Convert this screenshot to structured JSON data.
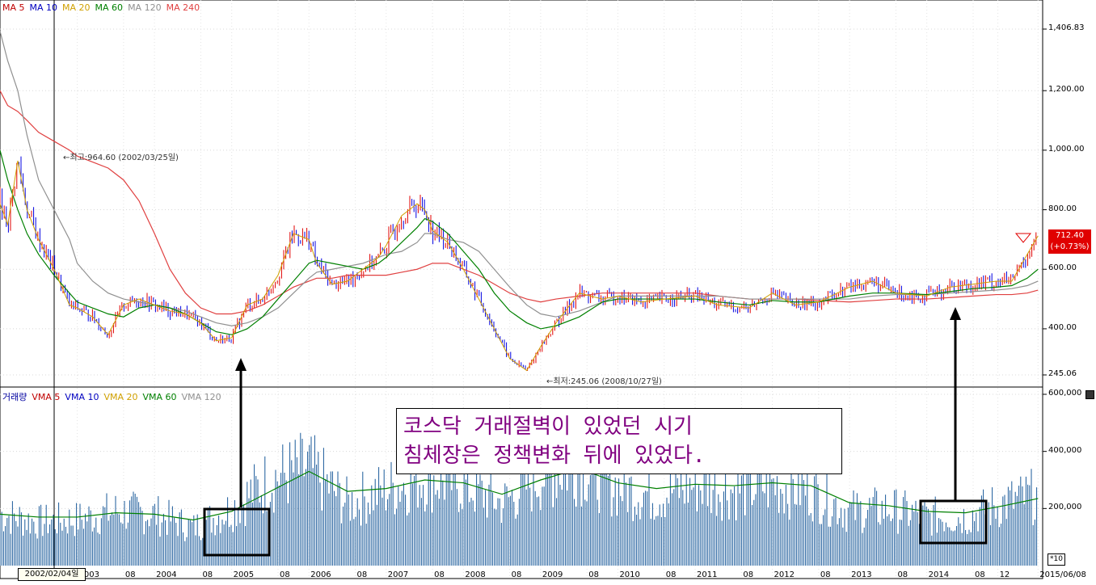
{
  "price_legend": [
    {
      "label": "MA 5",
      "color": "#c00000"
    },
    {
      "label": "MA 10",
      "color": "#0000c0"
    },
    {
      "label": "MA 20",
      "color": "#d0a000"
    },
    {
      "label": "MA 60",
      "color": "#008000"
    },
    {
      "label": "MA 120",
      "color": "#909090"
    },
    {
      "label": "MA 240",
      "color": "#e04040"
    }
  ],
  "volume_legend": [
    {
      "label": "거래량",
      "color": "#0000a0"
    },
    {
      "label": "VMA 5",
      "color": "#c00000"
    },
    {
      "label": "VMA 10",
      "color": "#0000c0"
    },
    {
      "label": "VMA 20",
      "color": "#d0a000"
    },
    {
      "label": "VMA 60",
      "color": "#008000"
    },
    {
      "label": "VMA 120",
      "color": "#909090"
    }
  ],
  "annotations": {
    "high_label": "←최고:964.60 (2002/03/25일)",
    "low_label": "←최저:245.06 (2008/10/27일)",
    "text_box_line1": "코스닥 거래절벽이 있었던 시기",
    "text_box_line2": "침체장은 정책변화 뒤에 있었다.",
    "last_price": "712.40",
    "last_change": "(+0.73%)",
    "cursor_date": "2002/02/04일",
    "multiplier": "*10"
  },
  "colors": {
    "up": "#e00000",
    "down": "#0000e0",
    "volume": "#1a5a9a",
    "box_text": "#800080"
  },
  "chart_data": [
    {
      "type": "line",
      "title": "",
      "ylim": [
        245.06,
        1406.83
      ],
      "y_ticks": [
        "1,406.83",
        "1,200.00",
        "1,000.00",
        "800.00",
        "600.00",
        "400.00",
        "245.06"
      ],
      "y_tick_values": [
        1406.83,
        1200,
        1000,
        800,
        600,
        400,
        245.06
      ],
      "x": [
        2002.0,
        2002.1,
        2002.23,
        2002.35,
        2002.5,
        2002.7,
        2002.9,
        2003.0,
        2003.2,
        2003.4,
        2003.6,
        2003.8,
        2004.0,
        2004.2,
        2004.4,
        2004.6,
        2004.8,
        2005.0,
        2005.2,
        2005.4,
        2005.6,
        2005.8,
        2006.0,
        2006.1,
        2006.3,
        2006.5,
        2006.7,
        2006.9,
        2007.0,
        2007.2,
        2007.4,
        2007.5,
        2007.6,
        2007.8,
        2008.0,
        2008.2,
        2008.4,
        2008.6,
        2008.82,
        2009.0,
        2009.2,
        2009.5,
        2009.8,
        2010.0,
        2010.3,
        2010.6,
        2011.0,
        2011.3,
        2011.7,
        2012.0,
        2012.3,
        2012.6,
        2013.0,
        2013.3,
        2013.6,
        2014.0,
        2014.3,
        2014.6,
        2014.9,
        2015.1,
        2015.3,
        2015.44
      ],
      "series": [
        {
          "name": "Close",
          "values": [
            820,
            750,
            964.6,
            800,
            700,
            600,
            480,
            470,
            440,
            380,
            480,
            500,
            480,
            460,
            450,
            420,
            360,
            370,
            480,
            500,
            580,
            720,
            700,
            620,
            550,
            560,
            600,
            640,
            680,
            780,
            820,
            800,
            730,
            690,
            600,
            500,
            400,
            300,
            260,
            340,
            420,
            520,
            500,
            510,
            490,
            500,
            510,
            480,
            470,
            520,
            480,
            490,
            540,
            560,
            520,
            510,
            540,
            550,
            560,
            560,
            650,
            712.4
          ]
        },
        {
          "name": "MA 240",
          "values": [
            1200,
            1150,
            1130,
            1100,
            1060,
            1030,
            1000,
            980,
            960,
            940,
            900,
            830,
            720,
            600,
            520,
            470,
            450,
            450,
            460,
            480,
            510,
            540,
            560,
            570,
            570,
            580,
            580,
            580,
            580,
            590,
            600,
            610,
            620,
            620,
            600,
            580,
            550,
            520,
            500,
            490,
            500,
            510,
            520,
            520,
            520,
            520,
            520,
            510,
            500,
            500,
            500,
            495,
            490,
            495,
            500,
            500,
            505,
            510,
            515,
            515,
            520,
            530
          ]
        },
        {
          "name": "MA 120",
          "values": [
            1400,
            1300,
            1200,
            1050,
            900,
            800,
            700,
            620,
            560,
            520,
            500,
            490,
            480,
            470,
            460,
            440,
            420,
            410,
            420,
            440,
            470,
            520,
            570,
            590,
            600,
            610,
            620,
            640,
            650,
            660,
            690,
            720,
            720,
            700,
            690,
            660,
            600,
            540,
            480,
            450,
            440,
            460,
            490,
            510,
            510,
            510,
            510,
            510,
            500,
            500,
            500,
            500,
            500,
            510,
            515,
            515,
            520,
            525,
            530,
            535,
            545,
            560
          ]
        },
        {
          "name": "MA 60",
          "values": [
            1000,
            900,
            800,
            720,
            650,
            580,
            520,
            490,
            470,
            450,
            440,
            470,
            480,
            470,
            450,
            420,
            390,
            380,
            400,
            440,
            500,
            560,
            620,
            630,
            620,
            610,
            600,
            620,
            640,
            690,
            740,
            770,
            760,
            720,
            660,
            600,
            520,
            460,
            420,
            400,
            410,
            440,
            490,
            500,
            500,
            500,
            500,
            490,
            480,
            495,
            490,
            490,
            510,
            520,
            520,
            515,
            525,
            535,
            540,
            545,
            570,
            600
          ]
        }
      ]
    },
    {
      "type": "bar",
      "title": "",
      "ylim": [
        0,
        600000
      ],
      "y_ticks": [
        "600,000",
        "400,000",
        "200,000"
      ],
      "y_tick_values": [
        600000,
        400000,
        200000
      ],
      "x_ticks": [
        "2003",
        "08",
        "2004",
        "08",
        "2005",
        "08",
        "2006",
        "08",
        "2007",
        "08",
        "2008",
        "08",
        "2009",
        "08",
        "2010",
        "08",
        "2011",
        "08",
        "2012",
        "08",
        "2013",
        "08",
        "2014",
        "08",
        "12",
        "2015/06/08"
      ],
      "x_tick_positions": [
        2003.0,
        2003.6,
        2004.0,
        2004.6,
        2005.0,
        2005.6,
        2006.0,
        2006.6,
        2007.0,
        2007.6,
        2008.0,
        2008.6,
        2009.0,
        2009.6,
        2010.0,
        2010.6,
        2011.0,
        2011.6,
        2012.0,
        2012.6,
        2013.0,
        2013.6,
        2014.0,
        2014.6,
        2014.92,
        2015.44
      ],
      "x": [
        2002.0,
        2002.5,
        2003.0,
        2003.5,
        2004.0,
        2004.5,
        2005.0,
        2005.5,
        2006.0,
        2006.5,
        2007.0,
        2007.5,
        2008.0,
        2008.5,
        2009.0,
        2009.5,
        2010.0,
        2010.5,
        2011.0,
        2011.5,
        2012.0,
        2012.5,
        2013.0,
        2013.5,
        2014.0,
        2014.5,
        2015.0,
        2015.44
      ],
      "series": [
        {
          "name": "거래량",
          "values": [
            190000,
            160000,
            170000,
            200000,
            190000,
            140000,
            210000,
            320000,
            360000,
            230000,
            280000,
            330000,
            300000,
            230000,
            330000,
            380000,
            290000,
            260000,
            300000,
            280000,
            300000,
            280000,
            200000,
            210000,
            180000,
            180000,
            230000,
            260000
          ]
        },
        {
          "name": "VMA 60",
          "values": [
            180000,
            170000,
            170000,
            185000,
            180000,
            160000,
            190000,
            260000,
            330000,
            260000,
            270000,
            300000,
            290000,
            250000,
            300000,
            340000,
            290000,
            270000,
            285000,
            280000,
            290000,
            280000,
            220000,
            210000,
            190000,
            185000,
            210000,
            235000
          ]
        }
      ]
    }
  ]
}
